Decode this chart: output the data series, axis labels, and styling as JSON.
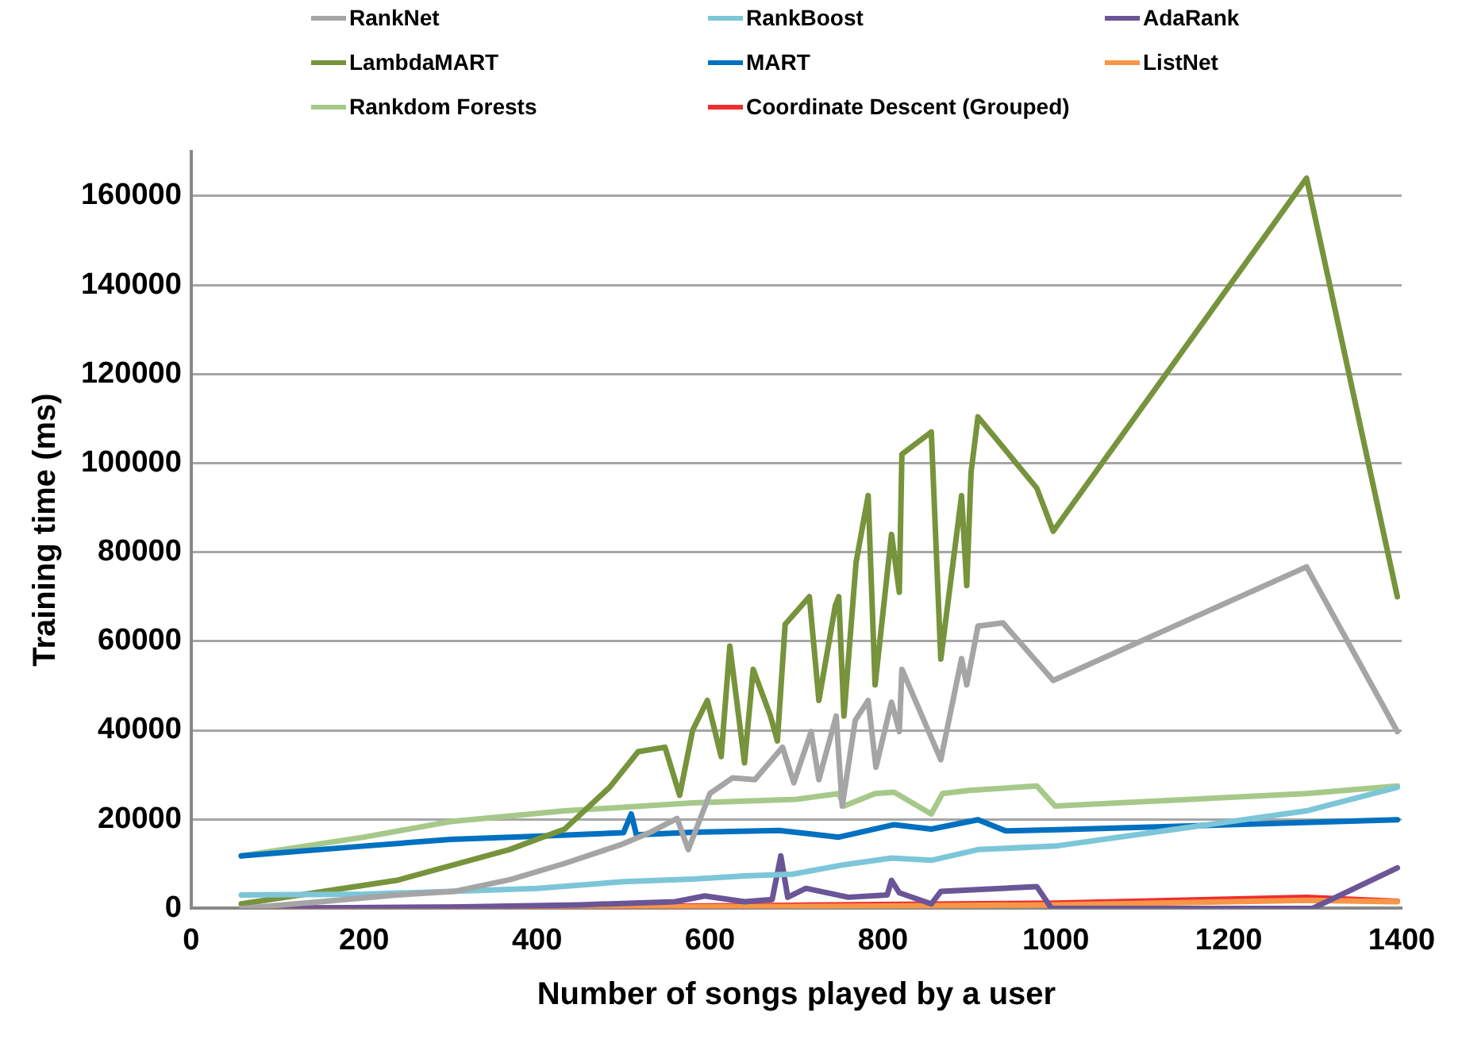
{
  "chart_data": {
    "type": "line",
    "xlabel": "Number of songs played by a user",
    "ylabel": "Training time (ms)",
    "xlim": [
      0,
      1400
    ],
    "xticks": [
      0,
      200,
      400,
      600,
      800,
      1000,
      1200,
      1400
    ],
    "ylim": [
      0,
      170000
    ],
    "yticks": [
      0,
      20000,
      40000,
      60000,
      80000,
      100000,
      120000,
      140000,
      160000
    ],
    "grid": "y",
    "legend": "top",
    "marker": "none",
    "line_style": "solid",
    "series": [
      {
        "name": "RankNet",
        "color": "#a5a5a5",
        "x": [
          58,
          150,
          238,
          304,
          370,
          432,
          497,
          530,
          562,
          575,
          600,
          626,
          652,
          684,
          697,
          717,
          726,
          746,
          753,
          768,
          783,
          792,
          810,
          819,
          822,
          867,
          891,
          897,
          910,
          939,
          997,
          1290,
          1395
        ],
        "values": [
          0,
          1500,
          3000,
          3800,
          6500,
          10100,
          14300,
          17000,
          20200,
          13200,
          25800,
          29300,
          28900,
          36200,
          28200,
          39700,
          28900,
          43200,
          23000,
          42200,
          46700,
          31700,
          46300,
          39700,
          53700,
          33400,
          56100,
          50200,
          63400,
          64100,
          51200,
          76700,
          39700
        ]
      },
      {
        "name": "RankBoost",
        "color": "#7cc6d8",
        "x": [
          58,
          200,
          300,
          400,
          500,
          580,
          640,
          696,
          755,
          810,
          856,
          910,
          1000,
          1290,
          1395
        ],
        "values": [
          3000,
          3200,
          3800,
          4500,
          6000,
          6600,
          7300,
          7700,
          9800,
          11300,
          10800,
          13200,
          14000,
          21900,
          27200
        ]
      },
      {
        "name": "AdaRank",
        "color": "#6a5597",
        "x": [
          58,
          300,
          450,
          560,
          594,
          640,
          672,
          682,
          690,
          711,
          760,
          805,
          810,
          819,
          856,
          867,
          978,
          995,
          1297,
          1395
        ],
        "values": [
          0,
          300,
          800,
          1500,
          2800,
          1500,
          2000,
          11800,
          2500,
          4500,
          2500,
          3000,
          6300,
          3500,
          1000,
          3800,
          4900,
          0,
          0,
          9100
        ]
      },
      {
        "name": "LambdaMART",
        "color": "#77933c",
        "x": [
          58,
          238,
          368,
          432,
          484,
          517,
          548,
          565,
          580,
          597,
          613,
          623,
          640,
          650,
          670,
          678,
          687,
          715,
          726,
          745,
          749,
          755,
          769,
          783,
          791,
          810,
          819,
          822,
          856,
          867,
          891,
          897,
          902,
          910,
          978,
          997,
          1290,
          1395
        ],
        "values": [
          1000,
          6300,
          13200,
          17800,
          27200,
          35200,
          36200,
          25400,
          40000,
          46700,
          34100,
          58900,
          32700,
          53700,
          43200,
          37600,
          63800,
          70000,
          46700,
          68000,
          70000,
          43200,
          77700,
          92700,
          50200,
          84000,
          71000,
          102000,
          107000,
          56000,
          92700,
          72500,
          98000,
          110400,
          94400,
          84700,
          164000,
          70000
        ]
      },
      {
        "name": "MART",
        "color": "#0070c0",
        "x": [
          58,
          200,
          300,
          400,
          500,
          509,
          515,
          580,
          680,
          749,
          813,
          856,
          910,
          942,
          1012,
          1395
        ],
        "values": [
          11800,
          14000,
          15500,
          16200,
          17000,
          21200,
          16500,
          17100,
          17500,
          16000,
          18800,
          17800,
          19900,
          17400,
          17700,
          19900
        ]
      },
      {
        "name": "ListNet",
        "color": "#f79646",
        "x": [
          58,
          800,
          1000,
          1290,
          1395
        ],
        "values": [
          0,
          500,
          800,
          1800,
          1500
        ]
      },
      {
        "name": "Rankdom Forests",
        "color": "#a6c98a",
        "x": [
          58,
          200,
          300,
          432,
          580,
          700,
          749,
          755,
          791,
          813,
          856,
          869,
          900,
          978,
          999,
          1290,
          1395
        ],
        "values": [
          11800,
          16000,
          19500,
          21900,
          23700,
          24500,
          25800,
          23000,
          25800,
          26100,
          21200,
          25800,
          26500,
          27500,
          23000,
          25800,
          27500
        ]
      },
      {
        "name": "Coordinate Descent (Grouped)",
        "color": "#ee2e2e",
        "x": [
          58,
          400,
          700,
          1000,
          1290,
          1395
        ],
        "values": [
          0,
          300,
          700,
          1200,
          2500,
          1600
        ]
      }
    ]
  }
}
